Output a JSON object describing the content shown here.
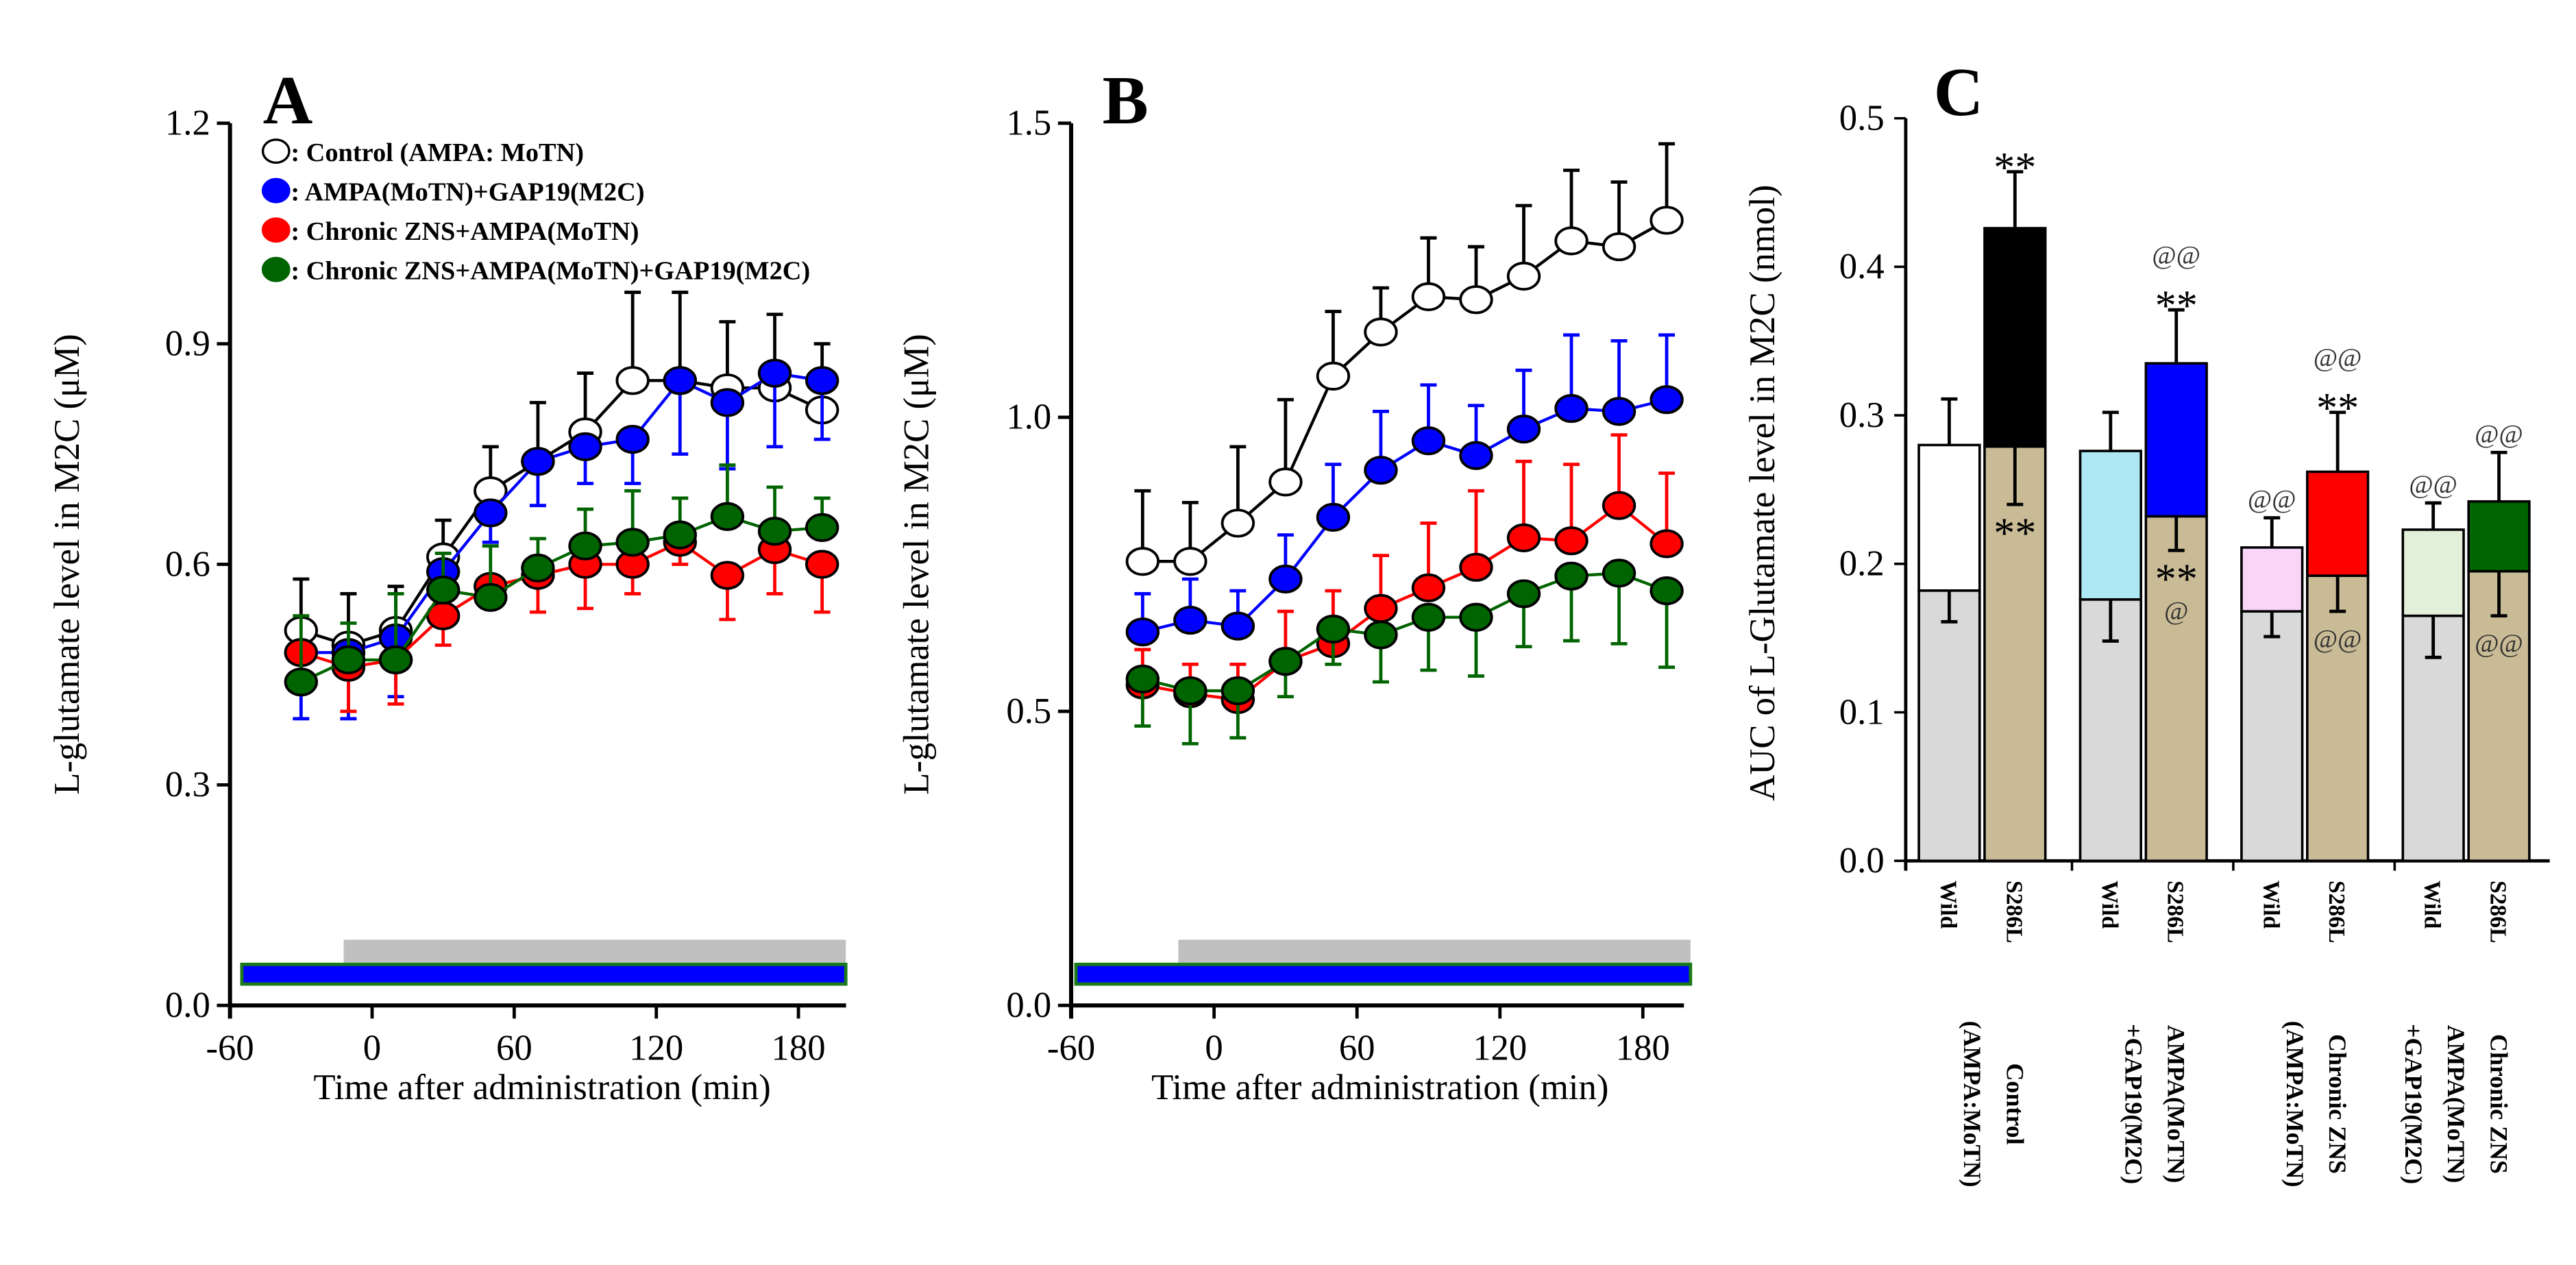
{
  "chart_data": [
    {
      "panel": "A",
      "type": "line",
      "xlabel": "Time after administration (min)",
      "ylabel": "L-glutamate level in M2C (μM)",
      "ylim": [
        0,
        1.2
      ],
      "yticks": [
        "0.0",
        "0.3",
        "0.6",
        "0.9",
        "1.2"
      ],
      "ytick_values": [
        0,
        0.3,
        0.6,
        0.9,
        1.2
      ],
      "xlim": [
        -60,
        200
      ],
      "xticks": [
        "-60",
        "0",
        "60",
        "120",
        "180"
      ],
      "xtick_values": [
        -60,
        0,
        60,
        120,
        180
      ],
      "bars": [
        {
          "name": "grey-bar",
          "from": -12,
          "to": 200,
          "color": "#c0c0c0"
        },
        {
          "name": "blue-bar",
          "from": -55,
          "to": 200,
          "color": "#0000ff",
          "border": "#1a7a1a"
        }
      ],
      "legend": [
        {
          "label": ": Control (AMPA: MoTN)",
          "fill": "#ffffff"
        },
        {
          "label": ": AMPA(MoTN)+GAP19(M2C)",
          "fill": "#0000ff"
        },
        {
          "label": ": Chronic ZNS+AMPA(MoTN)",
          "fill": "#ff0000"
        },
        {
          "label": ": Chronic ZNS+AMPA(MoTN)+GAP19(M2C)",
          "fill": "#006400"
        }
      ],
      "x": [
        -30,
        -10,
        10,
        30,
        50,
        70,
        90,
        110,
        130,
        150,
        170,
        190
      ],
      "series": [
        {
          "name": "Control (AMPA: MoTN)",
          "fill": "#ffffff",
          "line": "#000000",
          "err_dir": "up",
          "values": [
            0.51,
            0.49,
            0.51,
            0.61,
            0.7,
            0.74,
            0.78,
            0.85,
            0.85,
            0.84,
            0.84,
            0.81
          ],
          "err": [
            0.07,
            0.07,
            0.06,
            0.05,
            0.06,
            0.08,
            0.08,
            0.12,
            0.12,
            0.09,
            0.1,
            0.09
          ]
        },
        {
          "name": "AMPA(MoTN)+GAP19(M2C)",
          "fill": "#0000ff",
          "line": "#0000ff",
          "err_dir": "down",
          "values": [
            0.48,
            0.48,
            0.5,
            0.59,
            0.67,
            0.74,
            0.76,
            0.77,
            0.85,
            0.82,
            0.86,
            0.85
          ],
          "err": [
            0.09,
            0.09,
            0.08,
            0.04,
            0.04,
            0.06,
            0.05,
            0.06,
            0.1,
            0.09,
            0.1,
            0.08
          ]
        },
        {
          "name": "Chronic ZNS+AMPA(MoTN)",
          "fill": "#ff0000",
          "line": "#ff0000",
          "err_dir": "down",
          "values": [
            0.48,
            0.46,
            0.47,
            0.53,
            0.57,
            0.585,
            0.6,
            0.6,
            0.63,
            0.585,
            0.62,
            0.6
          ],
          "err": [
            0.05,
            0.06,
            0.06,
            0.04,
            0.03,
            0.05,
            0.06,
            0.04,
            0.03,
            0.06,
            0.06,
            0.065
          ]
        },
        {
          "name": "Chronic ZNS+AMPA(MoTN)+GAP19(M2C)",
          "fill": "#006400",
          "line": "#006400",
          "err_dir": "up",
          "values": [
            0.44,
            0.47,
            0.47,
            0.565,
            0.555,
            0.595,
            0.625,
            0.63,
            0.64,
            0.665,
            0.645,
            0.65
          ],
          "err": [
            0.09,
            0.05,
            0.09,
            0.05,
            0.07,
            0.04,
            0.05,
            0.07,
            0.05,
            0.07,
            0.06,
            0.04
          ]
        }
      ]
    },
    {
      "panel": "B",
      "type": "line",
      "xlabel": "Time after administration (min)",
      "ylabel": "L-glutamate level in M2C (μM)",
      "ylim": [
        0,
        1.5
      ],
      "yticks": [
        "0.0",
        "0.5",
        "1.0",
        "1.5"
      ],
      "ytick_values": [
        0,
        0.5,
        1.0,
        1.5
      ],
      "xlim": [
        -60,
        200
      ],
      "xticks": [
        "-60",
        "0",
        "60",
        "120",
        "180"
      ],
      "xtick_values": [
        -60,
        0,
        60,
        120,
        180
      ],
      "bars": [
        {
          "name": "grey-bar",
          "from": -15,
          "to": 200,
          "color": "#c0c0c0"
        },
        {
          "name": "blue-bar",
          "from": -58,
          "to": 200,
          "color": "#0000ff",
          "border": "#1a7a1a"
        }
      ],
      "x": [
        -30,
        -10,
        10,
        30,
        50,
        70,
        90,
        110,
        130,
        150,
        170,
        190
      ],
      "series": [
        {
          "name": "Control (AMPA: MoTN)",
          "fill": "#ffffff",
          "line": "#000000",
          "err_dir": "up",
          "values": [
            0.755,
            0.755,
            0.82,
            0.89,
            1.07,
            1.145,
            1.205,
            1.2,
            1.24,
            1.3,
            1.29,
            1.335
          ],
          "err": [
            0.12,
            0.1,
            0.13,
            0.14,
            0.11,
            0.075,
            0.1,
            0.09,
            0.12,
            0.12,
            0.11,
            0.13
          ]
        },
        {
          "name": "AMPA(MoTN)+GAP19(M2C)",
          "fill": "#0000ff",
          "line": "#0000ff",
          "err_dir": "up",
          "values": [
            0.635,
            0.655,
            0.645,
            0.725,
            0.83,
            0.91,
            0.96,
            0.935,
            0.98,
            1.015,
            1.01,
            1.03
          ],
          "err": [
            0.065,
            0.07,
            0.06,
            0.075,
            0.09,
            0.1,
            0.095,
            0.085,
            0.1,
            0.125,
            0.12,
            0.11
          ]
        },
        {
          "name": "Chronic ZNS+AMPA(MoTN)",
          "fill": "#ff0000",
          "line": "#ff0000",
          "err_dir": "up",
          "values": [
            0.545,
            0.53,
            0.52,
            0.585,
            0.615,
            0.675,
            0.71,
            0.745,
            0.795,
            0.79,
            0.85,
            0.785
          ],
          "err": [
            0.06,
            0.05,
            0.06,
            0.085,
            0.09,
            0.09,
            0.11,
            0.13,
            0.13,
            0.13,
            0.12,
            0.12
          ]
        },
        {
          "name": "Chronic ZNS+AMPA(MoTN)+GAP19(M2C)",
          "fill": "#006400",
          "line": "#006400",
          "err_dir": "down",
          "values": [
            0.555,
            0.535,
            0.535,
            0.585,
            0.64,
            0.63,
            0.66,
            0.66,
            0.7,
            0.73,
            0.735,
            0.705
          ],
          "err": [
            0.08,
            0.09,
            0.08,
            0.06,
            0.06,
            0.08,
            0.09,
            0.1,
            0.09,
            0.11,
            0.12,
            0.13
          ]
        }
      ]
    },
    {
      "panel": "C",
      "type": "bar",
      "ylabel": "AUC of L-Glutamate level in M2C (nmol)",
      "ylim": [
        0,
        0.5
      ],
      "yticks": [
        "0.0",
        "0.1",
        "0.2",
        "0.3",
        "0.4",
        "0.5"
      ],
      "ytick_values": [
        0,
        0.1,
        0.2,
        0.3,
        0.4,
        0.5
      ],
      "groups": [
        {
          "label_lines": [
            "Control",
            "(AMPA:MoTN)"
          ],
          "bars": [
            {
              "label": "Wild",
              "total": 0.28,
              "lower": 0.182,
              "err": 0.031,
              "lower_err": 0.021,
              "upper_color": "#ffffff",
              "lower_color": "#d9d9d9",
              "above": [],
              "inside": []
            },
            {
              "label": "S286L",
              "total": 0.426,
              "lower": 0.279,
              "err": 0.038,
              "lower_err": 0.039,
              "upper_color": "#000000",
              "lower_color": "#c9bb96",
              "above": [
                "**"
              ],
              "inside": [
                "**"
              ]
            }
          ]
        },
        {
          "label_lines": [
            "AMPA(MoTN)",
            "+GAP19(M2C)"
          ],
          "bars": [
            {
              "label": "Wild",
              "total": 0.276,
              "lower": 0.176,
              "err": 0.026,
              "lower_err": 0.028,
              "upper_color": "#aee8f5",
              "lower_color": "#d9d9d9",
              "above": [],
              "inside": []
            },
            {
              "label": "S286L",
              "total": 0.335,
              "lower": 0.232,
              "err": 0.036,
              "lower_err": 0.023,
              "upper_color": "#0000ff",
              "lower_color": "#c9bb96",
              "above": [
                "@@",
                "**"
              ],
              "inside": [
                "**",
                "@"
              ]
            }
          ]
        },
        {
          "label_lines": [
            "Chronic ZNS",
            "(AMPA:MoTN)"
          ],
          "bars": [
            {
              "label": "Wild",
              "total": 0.211,
              "lower": 0.168,
              "err": 0.02,
              "lower_err": 0.017,
              "upper_color": "#f9d5f8",
              "lower_color": "#d9d9d9",
              "above": [
                "@@"
              ],
              "inside": []
            },
            {
              "label": "S286L",
              "total": 0.262,
              "lower": 0.192,
              "err": 0.04,
              "lower_err": 0.024,
              "upper_color": "#ff0000",
              "lower_color": "#c9bb96",
              "above": [
                "@@",
                "**"
              ],
              "inside": [
                "@@"
              ]
            }
          ]
        },
        {
          "label_lines": [
            "Chronic ZNS",
            "AMPA(MoTN)",
            "+GAP19(M2C)"
          ],
          "bars": [
            {
              "label": "Wild",
              "total": 0.223,
              "lower": 0.165,
              "err": 0.018,
              "lower_err": 0.028,
              "upper_color": "#e2f0d9",
              "lower_color": "#d9d9d9",
              "above": [
                "@@"
              ],
              "inside": []
            },
            {
              "label": "S286L",
              "total": 0.242,
              "lower": 0.195,
              "err": 0.033,
              "lower_err": 0.03,
              "upper_color": "#006400",
              "lower_color": "#c9bb96",
              "above": [
                "@@"
              ],
              "inside": [
                "@@"
              ]
            }
          ]
        }
      ]
    }
  ]
}
